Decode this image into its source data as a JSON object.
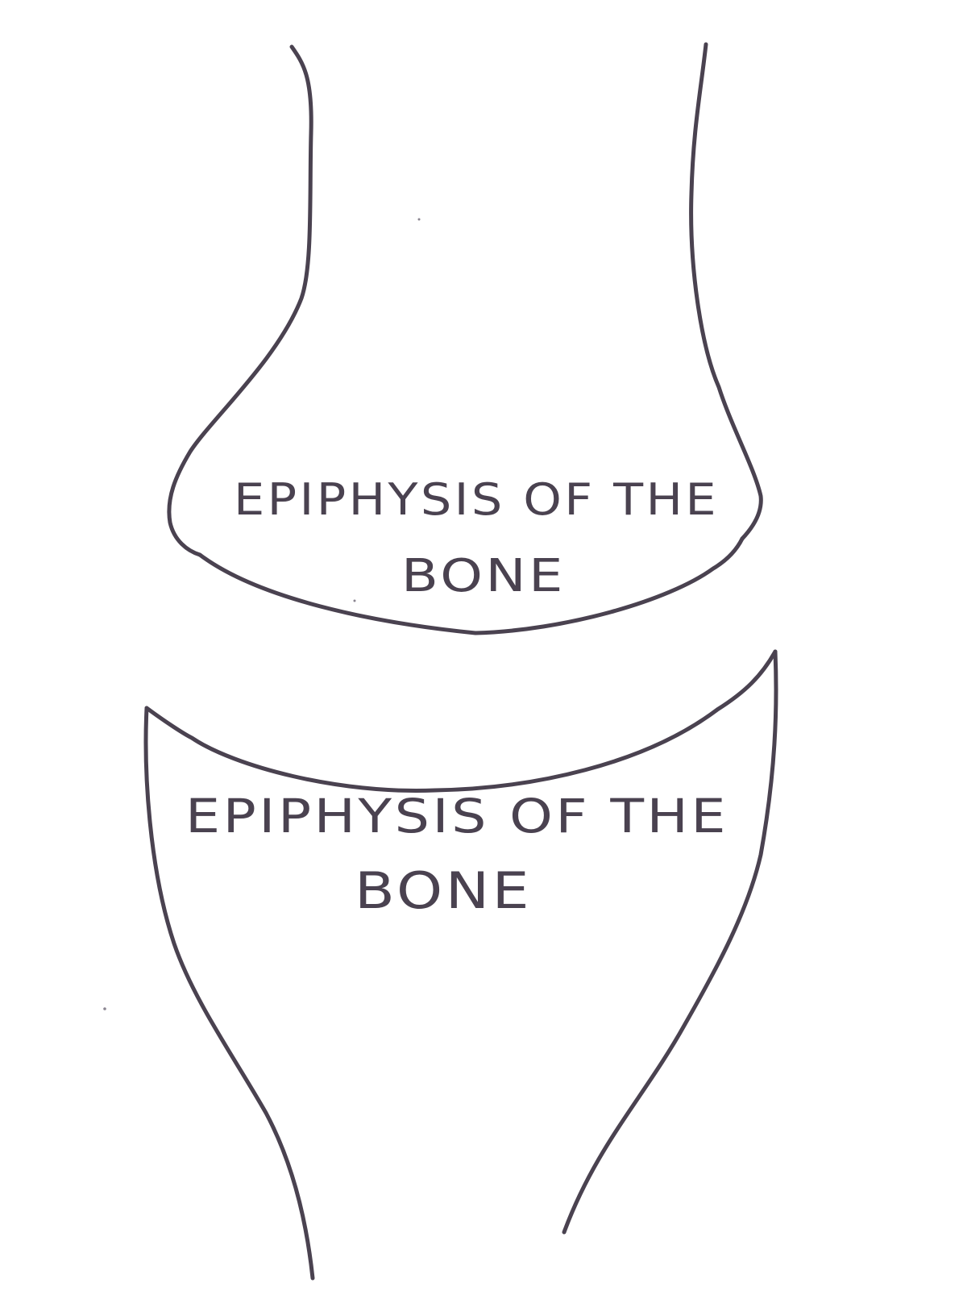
{
  "diagram": {
    "upper_bone_label": {
      "line1": "EPIPHYSIS OF THE",
      "line2": "BONE"
    },
    "lower_bone_label": {
      "line1": "EPIPHYSIS OF THE",
      "line2": "BONE"
    },
    "colors": {
      "ink": "#4a4250",
      "background": "#ffffff"
    }
  }
}
